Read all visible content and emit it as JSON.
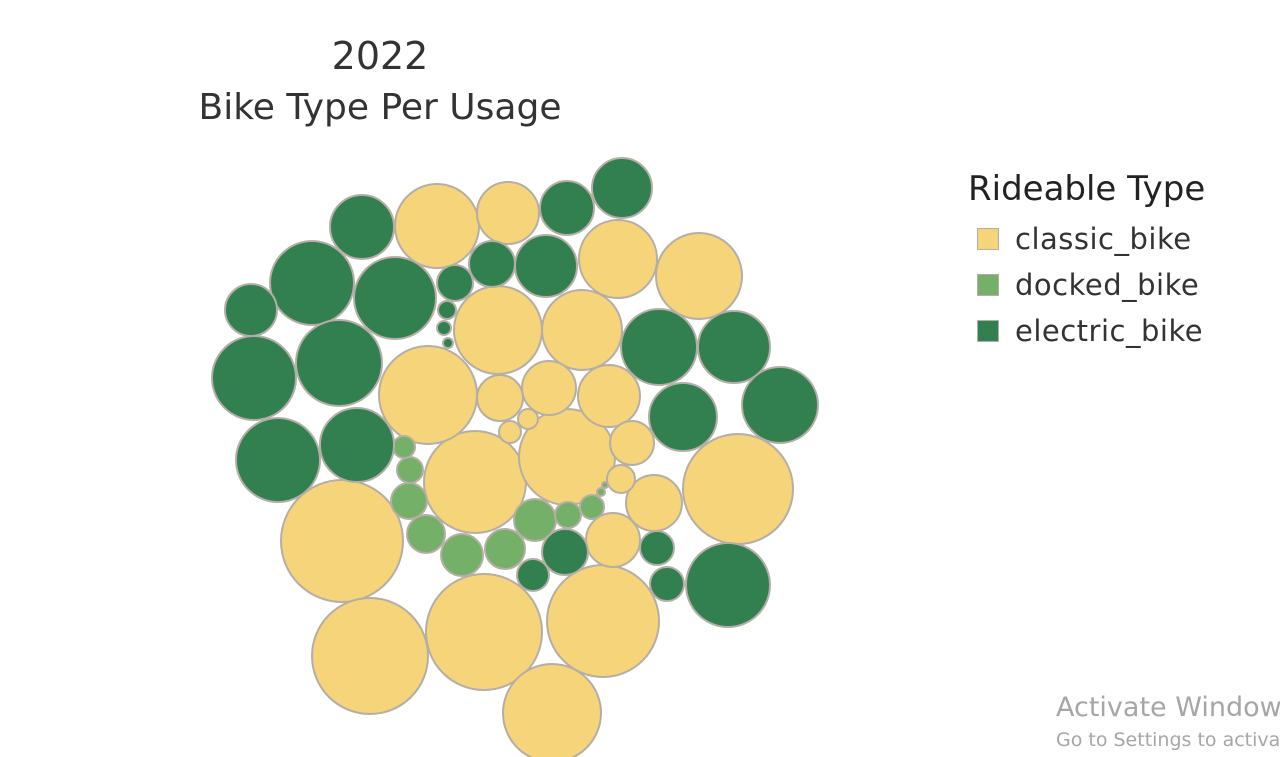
{
  "title": {
    "line1": "2022",
    "line2": "Bike Type Per Usage"
  },
  "chart_data": {
    "type": "packed-bubble",
    "title": "2022 Bike Type Per Usage",
    "legend": {
      "title": "Rideable Type",
      "placement": "right",
      "entries": [
        {
          "name": "classic_bike",
          "color": "#F6D47A"
        },
        {
          "name": "docked_bike",
          "color": "#75B068"
        },
        {
          "name": "electric_bike",
          "color": "#32804F"
        }
      ]
    },
    "series": [
      {
        "name": "classic_bike",
        "relative_sizes": [
          61,
          58,
          58,
          56,
          55,
          53,
          52,
          50,
          49,
          48,
          47,
          43,
          42,
          41,
          39,
          39,
          31,
          31,
          28,
          28,
          26,
          23,
          14,
          11,
          11
        ]
      },
      {
        "name": "docked_bike",
        "relative_sizes": [
          21,
          20,
          20,
          19,
          18,
          13,
          13,
          12,
          11,
          10,
          4,
          3
        ]
      },
      {
        "name": "electric_bike",
        "relative_sizes": [
          42,
          42,
          42,
          41,
          41,
          39,
          38,
          38,
          37,
          37,
          37,
          34,
          32,
          28,
          27,
          25,
          23,
          18,
          18,
          17,
          17,
          9,
          9,
          4
        ]
      }
    ]
  },
  "watermark": {
    "line1": "Activate Windows",
    "line2": "Go to Settings to activate Windows."
  },
  "colors": {
    "classic": "#F6D47A",
    "docked": "#75B068",
    "electric": "#32804F",
    "outline": "#B5AEA6"
  }
}
